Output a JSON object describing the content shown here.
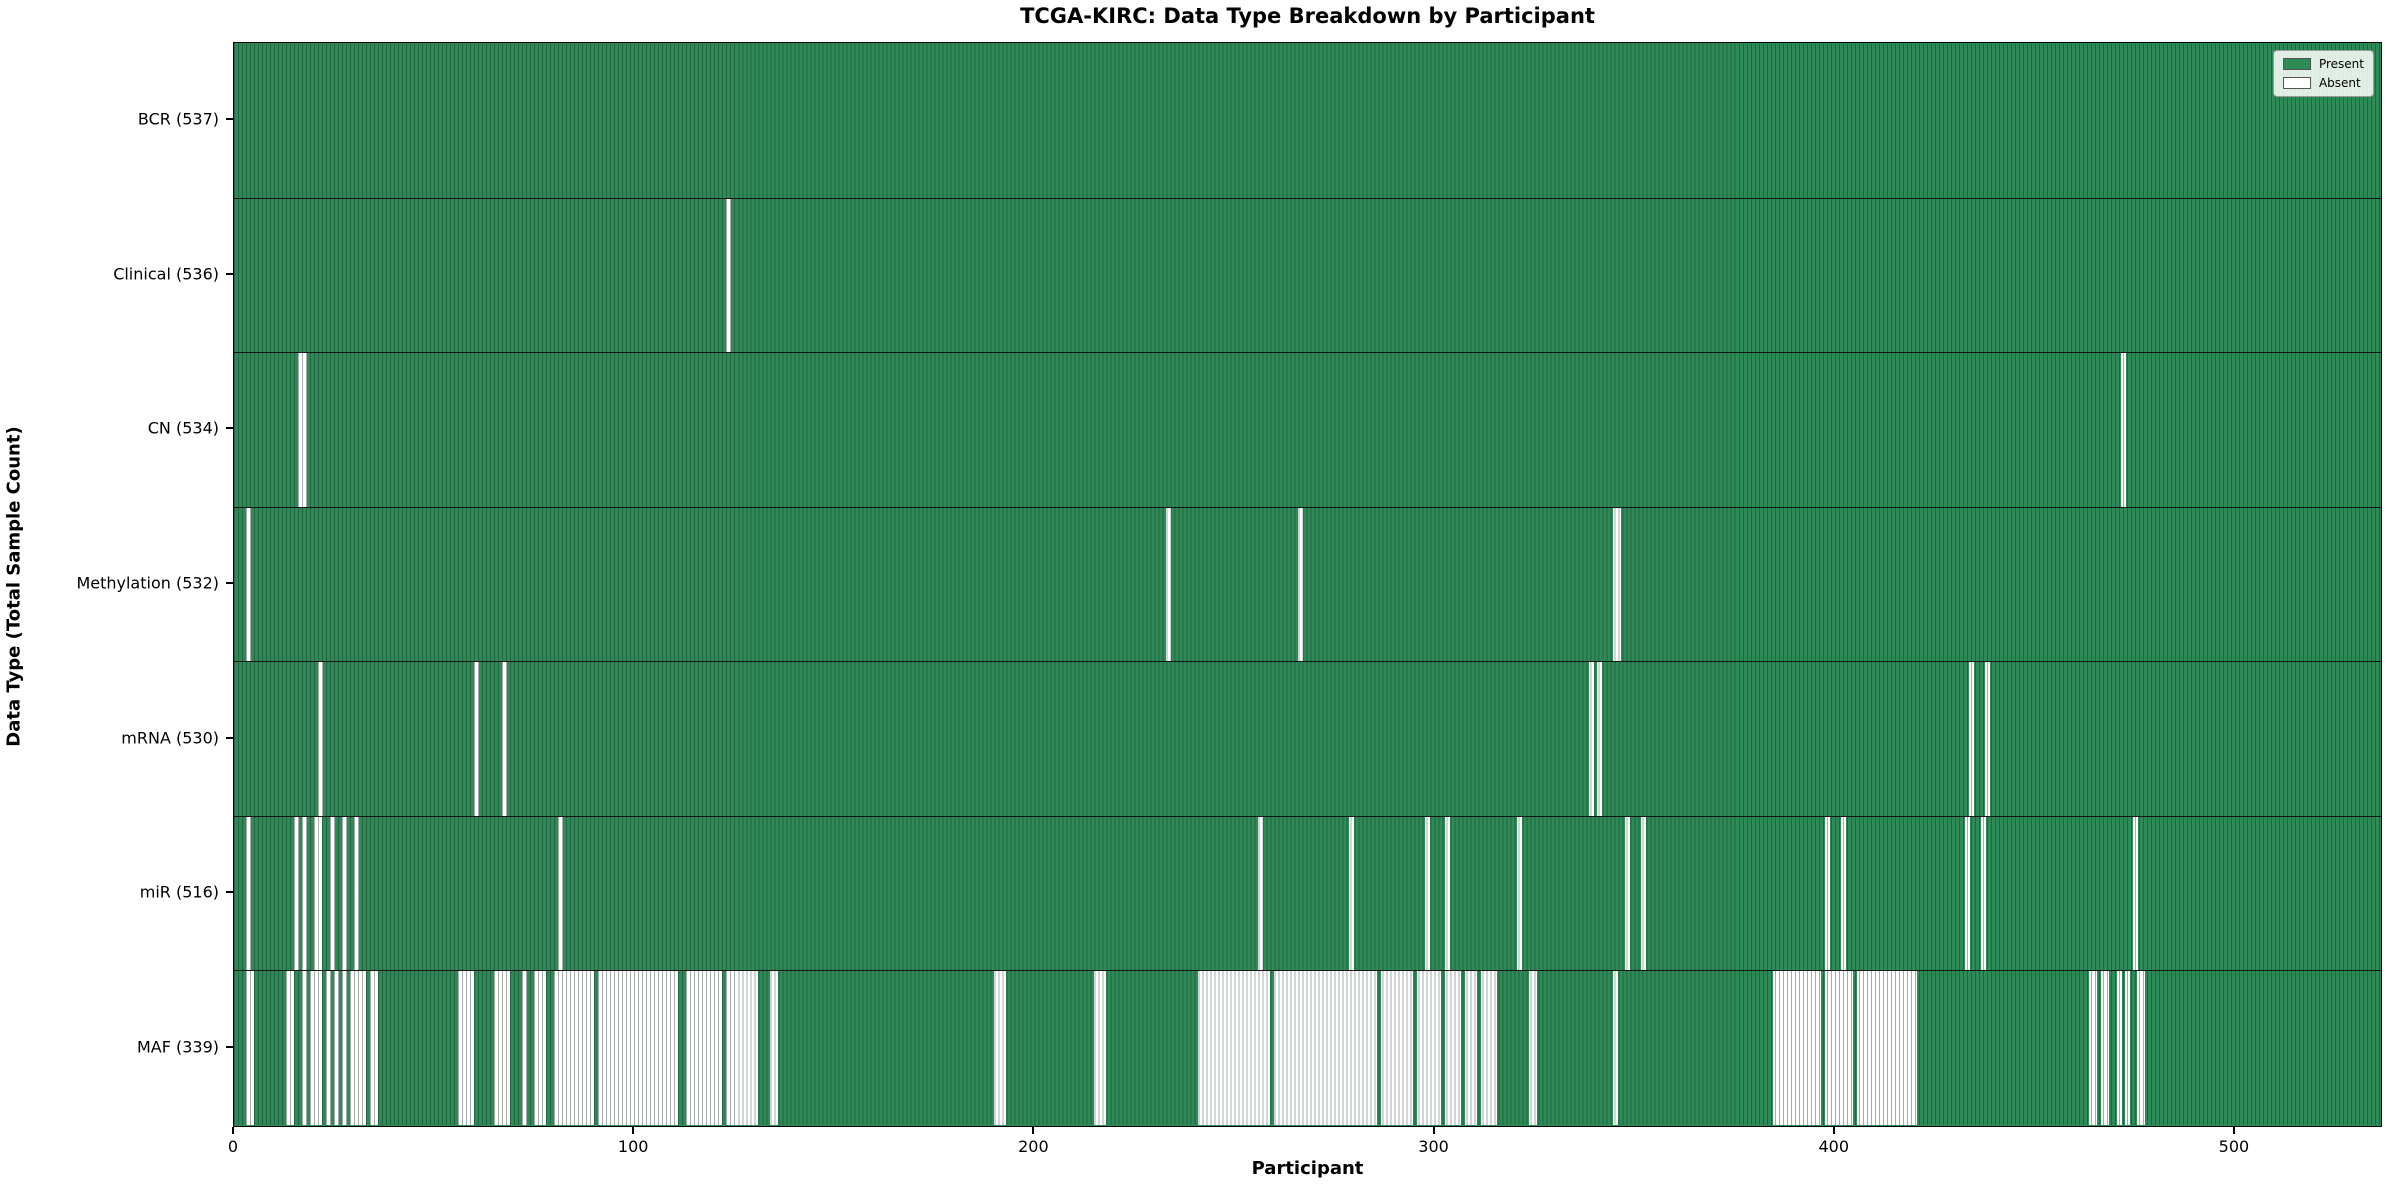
{
  "chart_data": {
    "type": "heatmap",
    "title": "TCGA-KIRC: Data Type Breakdown by Participant",
    "xlabel": "Participant",
    "ylabel": "Data Type (Total Sample Count)",
    "n_participants": 537,
    "x_ticks": [
      0,
      100,
      200,
      300,
      400,
      500
    ],
    "grid": false,
    "legend_position": "upper right",
    "legend": [
      {
        "label": "Present",
        "color": "#2e8b57"
      },
      {
        "label": "Absent",
        "color": "#ffffff"
      }
    ],
    "colors": {
      "present": "#2e8b57",
      "absent": "#ffffff",
      "bar_edge": "#143a24"
    },
    "rows": [
      {
        "name": "bcr",
        "label": "BCR (537)",
        "present_count": 537,
        "absent_count": 0,
        "absent_ranges": []
      },
      {
        "name": "clinical",
        "label": "Clinical (536)",
        "present_count": 536,
        "absent_count": 1,
        "absent_ranges": [
          [
            123,
            123
          ]
        ]
      },
      {
        "name": "cn",
        "label": "CN (534)",
        "present_count": 534,
        "absent_count": 3,
        "absent_ranges": [
          [
            16,
            16
          ],
          [
            17,
            17
          ],
          [
            472,
            472
          ]
        ]
      },
      {
        "name": "methylation",
        "label": "Methylation (532)",
        "present_count": 532,
        "absent_count": 5,
        "absent_ranges": [
          [
            3,
            3
          ],
          [
            233,
            233
          ],
          [
            266,
            266
          ],
          [
            345,
            346
          ]
        ]
      },
      {
        "name": "mrna",
        "label": "mRNA (530)",
        "present_count": 530,
        "absent_count": 7,
        "absent_ranges": [
          [
            21,
            21
          ],
          [
            60,
            60
          ],
          [
            67,
            67
          ],
          [
            339,
            339
          ],
          [
            341,
            341
          ],
          [
            434,
            434
          ],
          [
            438,
            438
          ]
        ]
      },
      {
        "name": "mir",
        "label": "miR (516)",
        "present_count": 516,
        "absent_count": 21,
        "absent_ranges": [
          [
            3,
            3
          ],
          [
            15,
            15
          ],
          [
            17,
            17
          ],
          [
            20,
            21
          ],
          [
            24,
            24
          ],
          [
            27,
            27
          ],
          [
            30,
            30
          ],
          [
            81,
            81
          ],
          [
            256,
            256
          ],
          [
            279,
            279
          ],
          [
            298,
            298
          ],
          [
            303,
            303
          ],
          [
            321,
            321
          ],
          [
            348,
            348
          ],
          [
            352,
            352
          ],
          [
            398,
            398
          ],
          [
            402,
            402
          ],
          [
            433,
            433
          ],
          [
            437,
            437
          ],
          [
            475,
            475
          ]
        ]
      },
      {
        "name": "maf",
        "label": "MAF (339)",
        "present_count": 339,
        "absent_count": 198,
        "absent_ranges": [
          [
            3,
            4
          ],
          [
            13,
            14
          ],
          [
            17,
            17
          ],
          [
            19,
            21
          ],
          [
            23,
            23
          ],
          [
            25,
            25
          ],
          [
            27,
            27
          ],
          [
            29,
            32
          ],
          [
            34,
            35
          ],
          [
            56,
            59
          ],
          [
            65,
            68
          ],
          [
            72,
            72
          ],
          [
            75,
            77
          ],
          [
            80,
            89
          ],
          [
            91,
            110
          ],
          [
            113,
            121
          ],
          [
            123,
            130
          ],
          [
            134,
            135
          ],
          [
            190,
            192
          ],
          [
            215,
            217
          ],
          [
            241,
            258
          ],
          [
            260,
            285
          ],
          [
            287,
            294
          ],
          [
            296,
            301
          ],
          [
            303,
            306
          ],
          [
            308,
            310
          ],
          [
            312,
            315
          ],
          [
            324,
            325
          ],
          [
            345,
            345
          ],
          [
            385,
            396
          ],
          [
            398,
            404
          ],
          [
            406,
            420
          ],
          [
            464,
            465
          ],
          [
            467,
            468
          ],
          [
            471,
            471
          ],
          [
            473,
            473
          ],
          [
            476,
            477
          ]
        ]
      }
    ]
  }
}
